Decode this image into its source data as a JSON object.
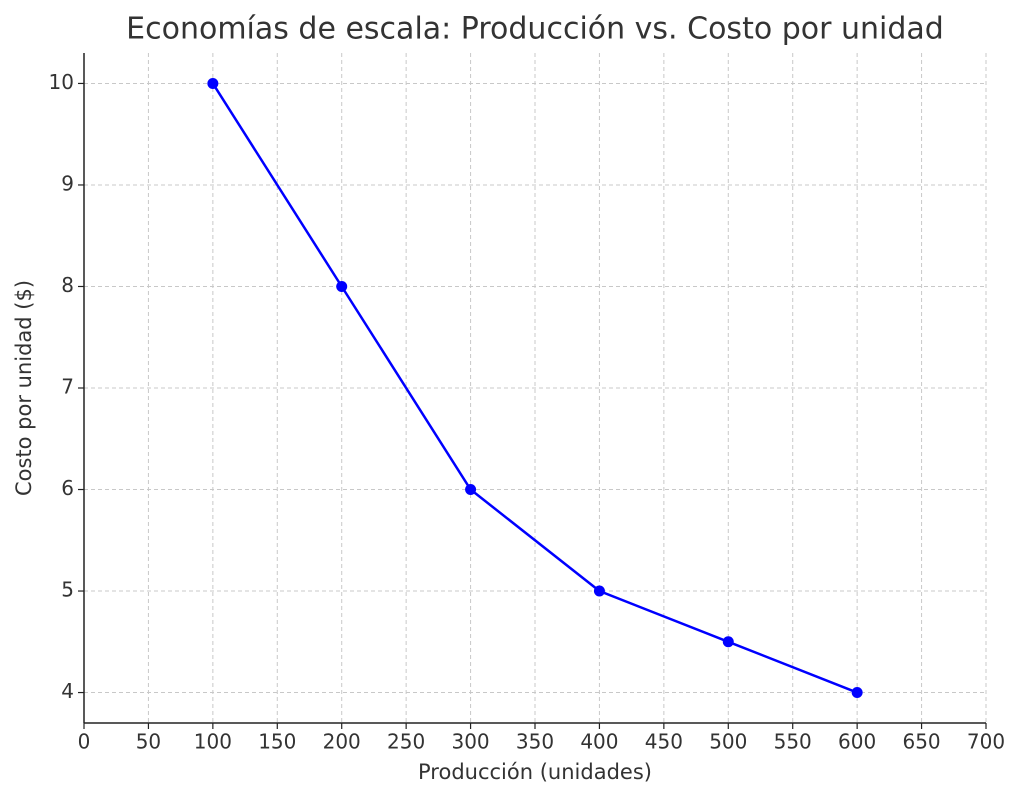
{
  "chart_data": {
    "type": "line",
    "title": "Economías de escala: Producción vs. Costo por unidad",
    "xlabel": "Producción (unidades)",
    "ylabel": "Costo por unidad ($)",
    "x": [
      100,
      200,
      300,
      400,
      500,
      600
    ],
    "series": [
      {
        "name": "Costo por unidad",
        "color": "#0000ff",
        "values": [
          10,
          8,
          6,
          5,
          4.5,
          4
        ]
      }
    ],
    "xlim": [
      0,
      700
    ],
    "xticks": [
      0,
      50,
      100,
      150,
      200,
      250,
      300,
      350,
      400,
      450,
      500,
      550,
      600,
      650,
      700
    ],
    "ylim": [
      3.7,
      10.3
    ],
    "yticks": [
      4,
      5,
      6,
      7,
      8,
      9,
      10
    ],
    "grid": true,
    "markers": true
  }
}
